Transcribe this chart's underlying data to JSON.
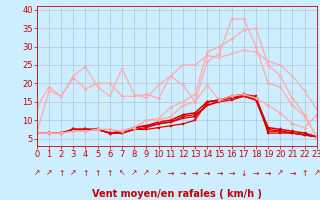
{
  "background_color": "#cceeff",
  "grid_color": "#aabbcc",
  "xlabel": "Vent moyen/en rafales ( km/h )",
  "xlabel_color": "#cc0000",
  "xlabel_fontsize": 7,
  "tick_color": "#cc0000",
  "tick_fontsize": 6,
  "xlim": [
    0,
    23
  ],
  "ylim": [
    3,
    41
  ],
  "yticks": [
    5,
    10,
    15,
    20,
    25,
    30,
    35,
    40
  ],
  "xticks": [
    0,
    1,
    2,
    3,
    4,
    5,
    6,
    7,
    8,
    9,
    10,
    11,
    12,
    13,
    14,
    15,
    16,
    17,
    18,
    19,
    20,
    21,
    22,
    23
  ],
  "arrows": [
    "↗",
    "↗",
    "↑",
    "↗",
    "↑",
    "↑",
    "↑",
    "↖",
    "↗",
    "↗",
    "↗",
    "→",
    "→",
    "→",
    "→",
    "→",
    "→",
    "↓",
    "→",
    "→",
    "↗",
    "→",
    "↑",
    "↗"
  ],
  "series": [
    {
      "x": [
        0,
        1,
        2,
        3,
        4,
        5,
        6,
        7,
        8,
        9,
        10,
        11,
        12,
        13,
        14,
        15,
        16,
        17,
        18,
        19,
        20,
        21,
        22,
        23
      ],
      "y": [
        6.5,
        6.5,
        6.5,
        7.5,
        7.5,
        7.5,
        6.5,
        6.5,
        7.5,
        7.5,
        8,
        8.5,
        9,
        10,
        15,
        15.5,
        16,
        17,
        16.5,
        6.5,
        6.5,
        6.5,
        6.0,
        5.5
      ],
      "color": "#dd0000",
      "lw": 0.9,
      "marker": "s",
      "markersize": 1.8,
      "alpha": 1.0
    },
    {
      "x": [
        0,
        1,
        2,
        3,
        4,
        5,
        6,
        7,
        8,
        9,
        10,
        11,
        12,
        13,
        14,
        15,
        16,
        17,
        18,
        19,
        20,
        21,
        22,
        23
      ],
      "y": [
        6.5,
        6.5,
        6.5,
        7.5,
        7.5,
        7.5,
        6.5,
        6.5,
        7.5,
        8,
        9,
        9.5,
        10.5,
        11,
        14,
        15,
        15.5,
        16.5,
        15.5,
        7,
        7,
        6.5,
        6.0,
        5.5
      ],
      "color": "#dd0000",
      "lw": 0.9,
      "marker": "s",
      "markersize": 1.8,
      "alpha": 1.0
    },
    {
      "x": [
        0,
        1,
        2,
        3,
        4,
        5,
        6,
        7,
        8,
        9,
        10,
        11,
        12,
        13,
        14,
        15,
        16,
        17,
        18,
        19,
        20,
        21,
        22,
        23
      ],
      "y": [
        6.5,
        6.5,
        6.5,
        7.5,
        7.5,
        7.5,
        6.5,
        6.5,
        8,
        8.5,
        9,
        9.5,
        11,
        11.5,
        14,
        15.5,
        16,
        16.5,
        15.5,
        7.5,
        7,
        6.5,
        6.0,
        5.5
      ],
      "color": "#dd0000",
      "lw": 0.9,
      "marker": "s",
      "markersize": 1.8,
      "alpha": 1.0
    },
    {
      "x": [
        0,
        1,
        2,
        3,
        4,
        5,
        6,
        7,
        8,
        9,
        10,
        11,
        12,
        13,
        14,
        15,
        16,
        17,
        18,
        19,
        20,
        21,
        22,
        23
      ],
      "y": [
        6.5,
        6.5,
        6.5,
        7.5,
        7.5,
        7.5,
        6.5,
        7,
        8,
        8.5,
        9.5,
        10,
        11.5,
        12,
        15,
        15.5,
        16.5,
        17,
        16,
        8,
        7.5,
        7,
        6.5,
        5.5
      ],
      "color": "#dd0000",
      "lw": 1.1,
      "marker": "D",
      "markersize": 2.0,
      "alpha": 1.0
    },
    {
      "x": [
        0,
        1,
        2,
        3,
        4,
        5,
        6,
        7,
        8,
        9,
        10,
        11,
        12,
        13,
        14,
        15,
        16,
        17,
        18,
        19,
        20,
        21,
        22,
        23
      ],
      "y": [
        13.5,
        19,
        16.5,
        21.5,
        18.5,
        20,
        20,
        16.5,
        16.5,
        17,
        16,
        22,
        19.5,
        15,
        19.5,
        15.5,
        16.5,
        17,
        16,
        14,
        12,
        9,
        8,
        11.5
      ],
      "color": "#ffaaaa",
      "lw": 0.9,
      "marker": "D",
      "markersize": 1.8,
      "alpha": 1.0
    },
    {
      "x": [
        0,
        1,
        2,
        3,
        4,
        5,
        6,
        7,
        8,
        9,
        10,
        11,
        12,
        13,
        14,
        15,
        16,
        17,
        18,
        19,
        20,
        21,
        22,
        23
      ],
      "y": [
        6.5,
        18,
        16.5,
        22,
        24.5,
        19,
        16.5,
        24,
        17,
        16,
        19.5,
        22,
        25,
        25,
        27.5,
        27,
        28,
        29,
        28.5,
        26,
        25,
        22,
        18,
        13
      ],
      "color": "#ffaaaa",
      "lw": 0.9,
      "marker": "v",
      "markersize": 1.8,
      "alpha": 1.0
    },
    {
      "x": [
        0,
        1,
        2,
        3,
        4,
        5,
        6,
        7,
        8,
        9,
        10,
        11,
        12,
        13,
        14,
        15,
        16,
        17,
        18,
        19,
        20,
        21,
        22,
        23
      ],
      "y": [
        6.5,
        6.5,
        6.5,
        7,
        7,
        7.5,
        7.5,
        7,
        8,
        10,
        10,
        11,
        14,
        15,
        26,
        28,
        37.5,
        37.5,
        30,
        20,
        19,
        14,
        11,
        5.5
      ],
      "color": "#ffaaaa",
      "lw": 0.9,
      "marker": "D",
      "markersize": 1.8,
      "alpha": 1.0
    },
    {
      "x": [
        0,
        1,
        2,
        3,
        4,
        5,
        6,
        7,
        8,
        9,
        10,
        11,
        12,
        13,
        14,
        15,
        16,
        17,
        18,
        19,
        20,
        21,
        22,
        23
      ],
      "y": [
        6.5,
        6.5,
        6.5,
        7,
        7,
        7.5,
        7.5,
        7,
        8,
        10,
        10.5,
        13.5,
        15,
        17,
        28.5,
        30,
        32,
        34.5,
        35,
        25,
        22,
        16,
        11.5,
        5.5
      ],
      "color": "#ffaaaa",
      "lw": 0.9,
      "marker": "D",
      "markersize": 1.8,
      "alpha": 1.0
    }
  ]
}
